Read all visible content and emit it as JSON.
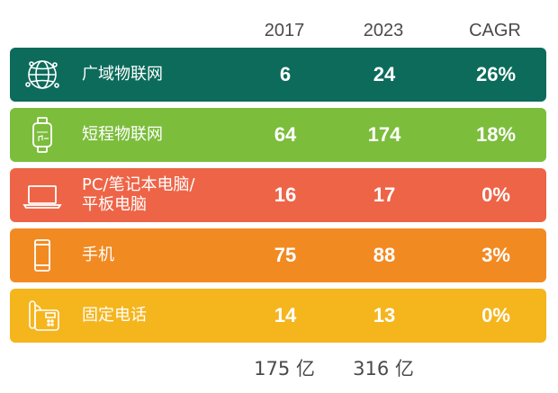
{
  "chart_data": {
    "type": "table",
    "columns": [
      "2017",
      "2023",
      "CAGR"
    ],
    "rows": [
      {
        "label": "广域物联网",
        "y2017": "6",
        "y2023": "24",
        "cagr": "26%",
        "color": "#0c6b5b",
        "icon": "globe-network-icon"
      },
      {
        "label": "短程物联网",
        "y2017": "64",
        "y2023": "174",
        "cagr": "18%",
        "color": "#7cbd3c",
        "icon": "smartwatch-icon"
      },
      {
        "label": "PC/笔记本电脑/\n平板电脑",
        "y2017": "16",
        "y2023": "17",
        "cagr": "0%",
        "color": "#ee6447",
        "icon": "laptop-icon"
      },
      {
        "label": "手机",
        "y2017": "75",
        "y2023": "88",
        "cagr": "3%",
        "color": "#f28a22",
        "icon": "phone-icon"
      },
      {
        "label": "固定电话",
        "y2017": "14",
        "y2023": "13",
        "cagr": "0%",
        "color": "#f5b51d",
        "icon": "desk-telephone-icon"
      }
    ],
    "totals": {
      "y2017": "175 亿",
      "y2023": "316 亿"
    }
  }
}
